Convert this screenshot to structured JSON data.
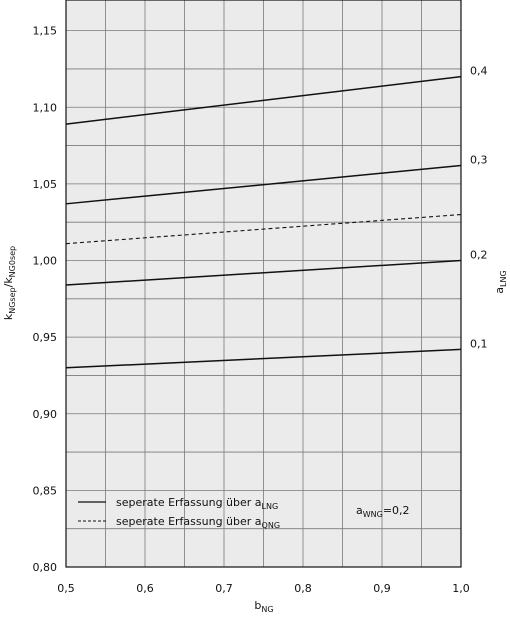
{
  "chart_data": {
    "type": "line",
    "xlabel": "b",
    "xlabel_sub": "NG",
    "ylabel_parts": [
      {
        "text": "k",
        "sub": false
      },
      {
        "text": "NGsep",
        "sub": true
      },
      {
        "text": "/k",
        "sub": false
      },
      {
        "text": "NG0sep",
        "sub": true
      }
    ],
    "right_axis_label": "a",
    "right_axis_label_sub": "LNG",
    "xlim": [
      0.5,
      1.0
    ],
    "ylim": [
      0.8,
      1.17
    ],
    "x_ticks": [
      0.5,
      0.55,
      0.6,
      0.65,
      0.7,
      0.75,
      0.8,
      0.85,
      0.9,
      0.95,
      1.0
    ],
    "x_tick_labels": [
      "0,5",
      "",
      "0,6",
      "",
      "0,7",
      "",
      "0,8",
      "",
      "0,9",
      "",
      "1,0"
    ],
    "y_ticks": [
      0.8,
      0.825,
      0.85,
      0.875,
      0.9,
      0.925,
      0.95,
      0.975,
      1.0,
      1.025,
      1.05,
      1.075,
      1.1,
      1.125,
      1.15
    ],
    "y_tick_labels": [
      "0,80",
      "",
      "0,85",
      "",
      "0,90",
      "",
      "0,95",
      "",
      "1,00",
      "",
      "1,05",
      "",
      "1,10",
      "",
      "1,15"
    ],
    "grid": true,
    "background": "#ebebeb",
    "grid_color": "#7a7a7a",
    "line_color": "#111111",
    "series": [
      {
        "label": "0,4",
        "style": "solid",
        "x": [
          0.5,
          1.0
        ],
        "y": [
          1.089,
          1.12
        ]
      },
      {
        "label": "0,3",
        "style": "solid",
        "x": [
          0.5,
          1.0
        ],
        "y": [
          1.037,
          1.062
        ]
      },
      {
        "label": "",
        "style": "dashed",
        "x": [
          0.5,
          1.0
        ],
        "y": [
          1.011,
          1.03
        ]
      },
      {
        "label": "0,2",
        "style": "solid",
        "x": [
          0.5,
          1.0
        ],
        "y": [
          0.984,
          1.0
        ]
      },
      {
        "label": "0,1",
        "style": "solid",
        "x": [
          0.5,
          1.0
        ],
        "y": [
          0.93,
          0.942
        ]
      }
    ],
    "legend": {
      "placement": "bottom-left",
      "entries": [
        {
          "style": "solid",
          "text": "seperate Erfassung über a",
          "sub": "LNG"
        },
        {
          "style": "dashed",
          "text": "seperate Erfassung über a",
          "sub": "QNG"
        }
      ]
    },
    "annotation": {
      "text": "a",
      "sub": "WNG",
      "suffix": "=0,2"
    }
  }
}
